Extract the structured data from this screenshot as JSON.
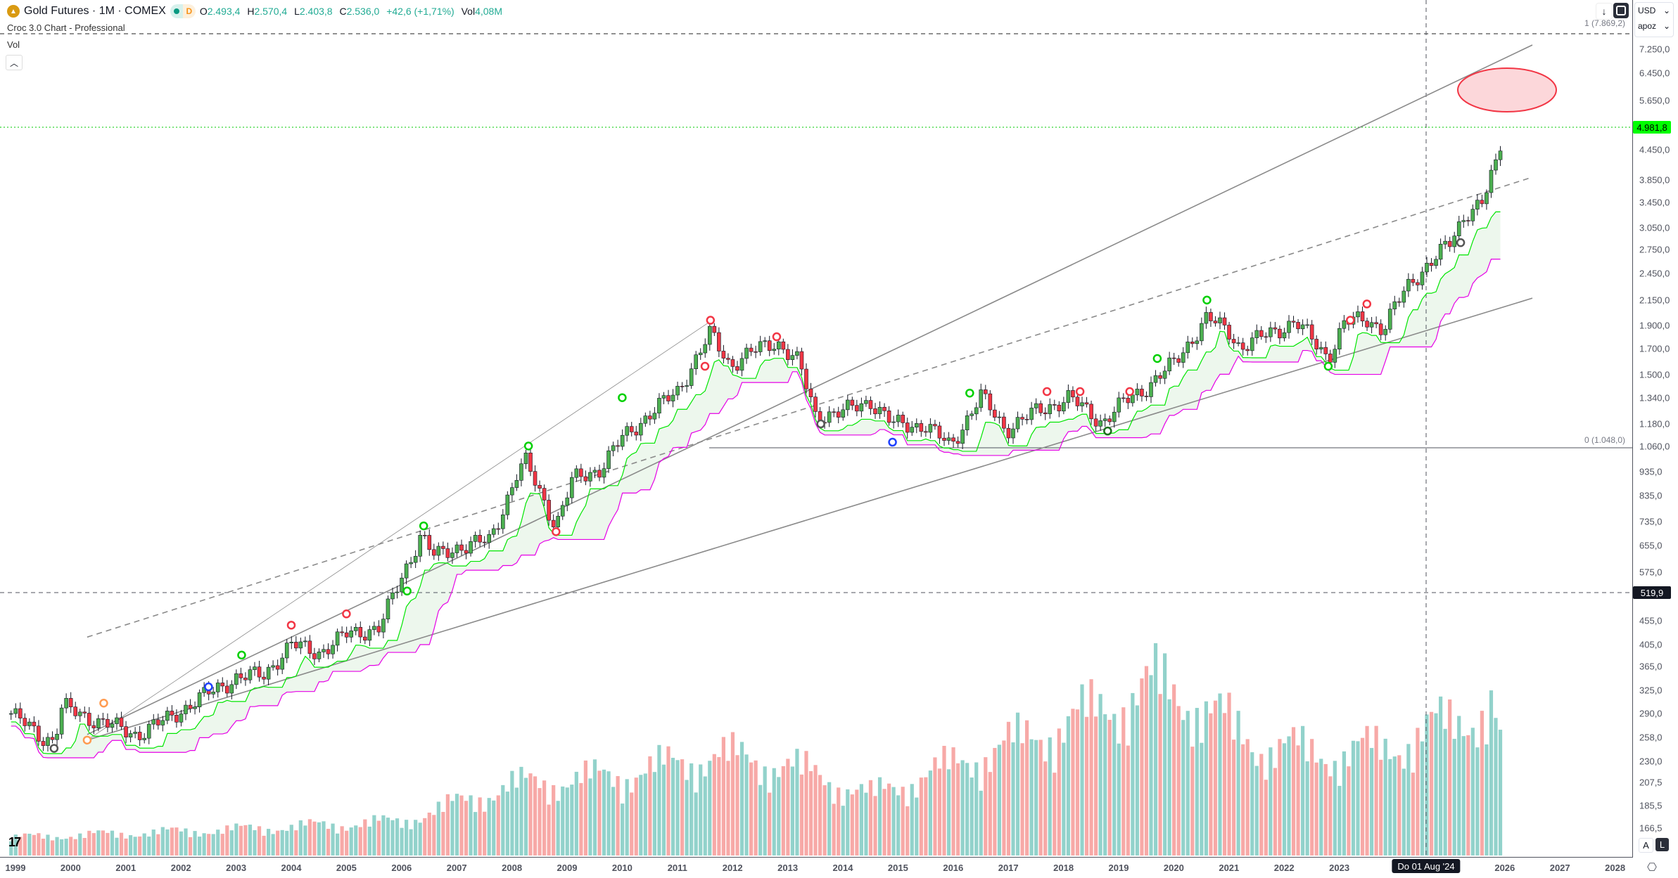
{
  "header": {
    "symbol": "Gold Futures · 1M · COMEX",
    "badge_d": "D",
    "open_label": "O",
    "open": "2.493,4",
    "high_label": "H",
    "high": "2.570,4",
    "low_label": "L",
    "low": "2.403,8",
    "close_label": "C",
    "close": "2.536,0",
    "change": "+42,6 (+1,71%)",
    "vol_label": "Vol",
    "vol": "4,08M",
    "indicator": "Croc 3.0 Chart - Professional",
    "volume_pane": "Vol",
    "collapse_icon": "chevron-up-icon"
  },
  "toolbar": {
    "download_icon": "↓",
    "currency": "USD",
    "unit": "apoz",
    "auto_label": "A",
    "log_label": "L"
  },
  "levels": {
    "top": "1 (7.869,2)",
    "bottom": "0 (1.048,0)"
  },
  "price_axis": [
    "7.250,0",
    "6.450,0",
    "5.650,0",
    "4.450,0",
    "3.850,0",
    "3.450,0",
    "3.050,0",
    "2.750,0",
    "2.450,0",
    "2.150,0",
    "1.900,0",
    "1.700,0",
    "1.500,0",
    "1.340,0",
    "1.180,0",
    "1.060,0",
    "935,0",
    "835,0",
    "735,0",
    "655,0",
    "575,0",
    "455,0",
    "405,0",
    "365,0",
    "325,0",
    "290,0",
    "258,0",
    "230,0",
    "207,5",
    "185,5",
    "166,5"
  ],
  "current_price": "4.981,8",
  "crosshair_price": "519,9",
  "crosshair_date": "Do 01 Aug '24",
  "time_axis": [
    "1999",
    "2000",
    "2001",
    "2002",
    "2003",
    "2004",
    "2005",
    "2006",
    "2007",
    "2008",
    "2009",
    "2010",
    "2011",
    "2012",
    "2013",
    "2014",
    "2015",
    "2016",
    "2017",
    "2018",
    "2019",
    "2020",
    "2021",
    "2022",
    "2023",
    "2026",
    "2027",
    "2028"
  ],
  "colors": {
    "up": "#4caf50",
    "down": "#f23645",
    "vol_up": "#92d2cb",
    "vol_down": "#f7a9a7",
    "band_fast": "#00e600",
    "band_slow": "#e600e6",
    "current": "#00ff00"
  },
  "chart_data": {
    "type": "candlestick",
    "scale": "log",
    "price_anchors": [
      [
        1998.92,
        290
      ],
      [
        1999.5,
        258
      ],
      [
        1999.7,
        255
      ],
      [
        1999.85,
        300
      ],
      [
        2000.3,
        285
      ],
      [
        2001.2,
        262
      ],
      [
        2001.7,
        280
      ],
      [
        2002.4,
        315
      ],
      [
        2003.0,
        345
      ],
      [
        2003.5,
        350
      ],
      [
        2004.0,
        405
      ],
      [
        2004.5,
        390
      ],
      [
        2005.0,
        425
      ],
      [
        2005.6,
        440
      ],
      [
        2006.0,
        560
      ],
      [
        2006.35,
        690
      ],
      [
        2006.6,
        620
      ],
      [
        2007.0,
        650
      ],
      [
        2007.6,
        670
      ],
      [
        2008.1,
        930
      ],
      [
        2008.25,
        980
      ],
      [
        2008.8,
        720
      ],
      [
        2009.1,
        900
      ],
      [
        2009.6,
        950
      ],
      [
        2010.0,
        1100
      ],
      [
        2010.5,
        1240
      ],
      [
        2011.0,
        1380
      ],
      [
        2011.6,
        1830
      ],
      [
        2011.95,
        1570
      ],
      [
        2012.3,
        1660
      ],
      [
        2012.8,
        1760
      ],
      [
        2013.2,
        1590
      ],
      [
        2013.5,
        1230
      ],
      [
        2014.0,
        1250
      ],
      [
        2014.5,
        1320
      ],
      [
        2014.9,
        1180
      ],
      [
        2015.5,
        1170
      ],
      [
        2015.95,
        1060
      ],
      [
        2016.5,
        1350
      ],
      [
        2016.95,
        1150
      ],
      [
        2017.5,
        1250
      ],
      [
        2018.1,
        1340
      ],
      [
        2018.7,
        1190
      ],
      [
        2019.1,
        1310
      ],
      [
        2019.5,
        1410
      ],
      [
        2020.0,
        1580
      ],
      [
        2020.6,
        1970
      ],
      [
        2021.0,
        1850
      ],
      [
        2021.2,
        1710
      ],
      [
        2022.2,
        1940
      ],
      [
        2022.8,
        1630
      ],
      [
        2023.1,
        1930
      ],
      [
        2023.5,
        1960
      ],
      [
        2023.8,
        1870
      ],
      [
        2024.0,
        2070
      ],
      [
        2024.3,
        2350
      ],
      [
        2024.58,
        2536
      ],
      [
        2025.0,
        2820
      ],
      [
        2025.3,
        3300
      ],
      [
        2025.6,
        3450
      ],
      [
        2025.75,
        3870
      ],
      [
        2025.9,
        4300
      ],
      [
        2026.0,
        4981.8
      ]
    ],
    "volume_relative_anchors": [
      [
        1999,
        0.09
      ],
      [
        2003,
        0.13
      ],
      [
        2006,
        0.17
      ],
      [
        2008,
        0.35
      ],
      [
        2010,
        0.4
      ],
      [
        2011.7,
        0.5
      ],
      [
        2013,
        0.45
      ],
      [
        2014.5,
        0.3
      ],
      [
        2016,
        0.45
      ],
      [
        2018,
        0.65
      ],
      [
        2019.7,
        0.85
      ],
      [
        2020.5,
        0.75
      ],
      [
        2021.5,
        0.55
      ],
      [
        2023,
        0.5
      ],
      [
        2024,
        0.55
      ],
      [
        2025.8,
        0.75
      ],
      [
        2026,
        0.4
      ]
    ],
    "trendlines": [
      {
        "name": "channel-upper",
        "from": [
          2000.3,
          262
        ],
        "to": [
          2026.5,
          7400
        ],
        "style": "solid"
      },
      {
        "name": "channel-mid",
        "from": [
          2000.3,
          420
        ],
        "to": [
          2026.5,
          3900
        ],
        "style": "dashed"
      },
      {
        "name": "channel-lower",
        "from": [
          2000.3,
          255
        ],
        "to": [
          2026.5,
          2170
        ],
        "style": "solid"
      },
      {
        "name": "fan-line",
        "from": [
          2000.3,
          255
        ],
        "to": [
          2011.6,
          1940
        ],
        "style": "thin"
      }
    ],
    "signals": [
      [
        1999.7,
        245,
        "#555"
      ],
      [
        2000.3,
        255,
        "#ff9b50"
      ],
      [
        2000.6,
        305,
        "#ff9b50"
      ],
      [
        2002.5,
        330,
        "#1e40ff"
      ],
      [
        2003.1,
        385,
        "#00d000"
      ],
      [
        2004.0,
        445,
        "#f23645"
      ],
      [
        2005.0,
        470,
        "#f23645"
      ],
      [
        2006.1,
        525,
        "#00d000"
      ],
      [
        2006.4,
        720,
        "#00d000"
      ],
      [
        2008.3,
        1060,
        "#00d000"
      ],
      [
        2008.8,
        700,
        "#f23645"
      ],
      [
        2010.0,
        1340,
        "#00d000"
      ],
      [
        2011.5,
        1560,
        "#f23645"
      ],
      [
        2011.6,
        1950,
        "#f23645"
      ],
      [
        2012.8,
        1800,
        "#f23645"
      ],
      [
        2013.6,
        1180,
        "#555"
      ],
      [
        2014.9,
        1080,
        "#1e40ff"
      ],
      [
        2016.3,
        1370,
        "#00d000"
      ],
      [
        2017.7,
        1380,
        "#f23645"
      ],
      [
        2018.3,
        1380,
        "#f23645"
      ],
      [
        2018.8,
        1140,
        "#1b6e1b"
      ],
      [
        2019.2,
        1380,
        "#f23645"
      ],
      [
        2019.7,
        1620,
        "#00d000"
      ],
      [
        2020.6,
        2150,
        "#00d000"
      ],
      [
        2022.8,
        1560,
        "#00d000"
      ],
      [
        2023.2,
        1950,
        "#f23645"
      ],
      [
        2023.5,
        2110,
        "#f23645"
      ],
      [
        2025.2,
        2840,
        "#555"
      ]
    ]
  }
}
